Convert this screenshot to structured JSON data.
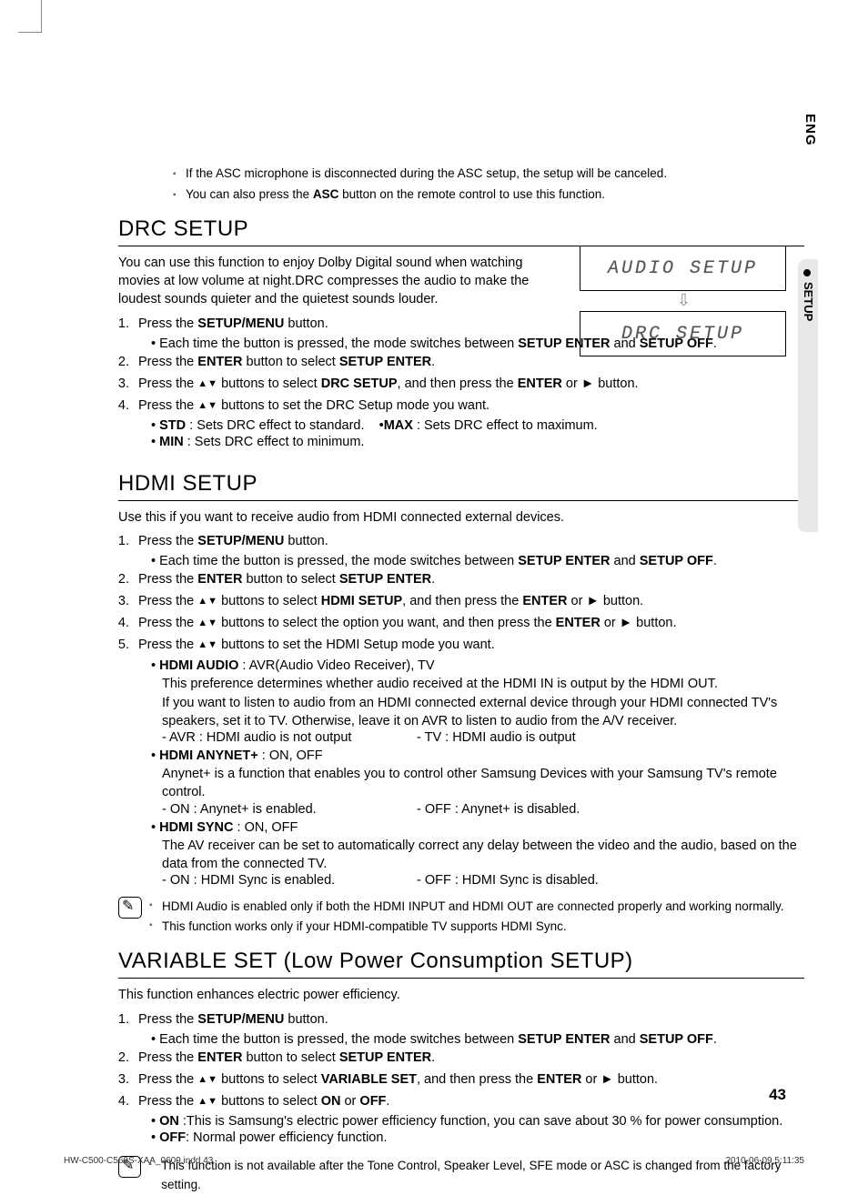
{
  "language_tab": "ENG",
  "section_tab": "SETUP",
  "top_notes": [
    "If the ASC microphone is disconnected during the ASC setup, the setup will be canceled.",
    "You can also press the <b>ASC</b> button on the remote control to use this function."
  ],
  "lcd1": "AUDIO SETUP",
  "lcd2": "DRC     SETUP",
  "drc": {
    "title": "DRC SETUP",
    "intro": "You can use this function to enjoy Dolby Digital sound when watching movies at low volume at night.DRC compresses the audio to make the loudest sounds quieter and the quietest sounds louder.",
    "step1": "Press the <b>SETUP/MENU</b> button.",
    "step1_sub": "• Each time the button is pressed, the mode switches between <b>SETUP ENTER</b> and <b>SETUP OFF</b>.",
    "step2": "Press the <b>ENTER</b> button to select <b>SETUP ENTER</b>.",
    "step3": "Press the <span class='arrow-btn'>▲▼</span> buttons to select <b>DRC SETUP</b>, and then press the <b>ENTER</b> or ► button.",
    "step4": "Press the <span class='arrow-btn'>▲▼</span> buttons to set the DRC Setup mode you want.",
    "opts": "• <b>STD</b> : Sets DRC effect to standard.&nbsp;&nbsp;&nbsp;&nbsp;•<b>MAX</b> : Sets DRC effect to maximum.",
    "opts2": "• <b>MIN</b> : Sets DRC effect to minimum."
  },
  "hdmi": {
    "title": "HDMI SETUP",
    "intro": "Use this if you want to receive audio from HDMI connected external devices.",
    "step1": "Press the <b>SETUP/MENU</b> button.",
    "step1_sub": "• Each time the button is pressed, the mode switches between <b>SETUP ENTER</b> and <b>SETUP OFF</b>.",
    "step2": "Press the <b>ENTER</b> button to select <b>SETUP ENTER</b>.",
    "step3": "Press the <span class='arrow-btn'>▲▼</span> buttons to select <b>HDMI SETUP</b>, and then press the <b>ENTER</b> or ► button.",
    "step4": "Press the <span class='arrow-btn'>▲▼</span> buttons to select the option you want, and then press the <b>ENTER</b> or ► button.",
    "step5": "Press the <span class='arrow-btn'>▲▼</span> buttons to set the HDMI Setup mode you want.",
    "audio_head": "• <b>HDMI AUDIO</b> : AVR(Audio Video Receiver), TV",
    "audio_body": "This preference determines whether audio received at the HDMI IN is output by the HDMI OUT.<br>If you want to listen to audio from an HDMI connected external device through your HDMI connected TV's speakers, set it to TV. Otherwise, leave it on AVR to listen to audio from the A/V receiver.",
    "audio_opt_l": "- AVR : HDMI audio is not output",
    "audio_opt_r": "- TV  : HDMI audio is output",
    "any_head": "• <b>HDMI ANYNET+</b> : ON, OFF",
    "any_body": "Anynet+ is a function that enables you to control other Samsung Devices with your Samsung TV's remote control.",
    "any_opt_l": "- ON : Anynet+ is enabled.",
    "any_opt_r": "- OFF : Anynet+ is disabled.",
    "sync_head": "• <b>HDMI SYNC</b> : ON, OFF",
    "sync_body": "The AV receiver can be set to automatically correct any delay between the video and the audio, based on the data from the connected TV.",
    "sync_opt_l": "- ON : HDMI Sync is enabled.",
    "sync_opt_r": "- OFF : HDMI Sync is disabled.",
    "notes": [
      "HDMI Audio is enabled only if both the HDMI INPUT and HDMI OUT are connected properly and working normally.",
      "This function works only if your HDMI-compatible TV supports HDMI Sync."
    ]
  },
  "variable": {
    "title": "VARIABLE SET (Low Power Consumption SETUP)",
    "intro": "This function enhances electric power efficiency.",
    "step1": "Press the <b>SETUP/MENU</b> button.",
    "step1_sub": "• Each time the button is pressed, the mode switches between <b>SETUP ENTER</b> and <b>SETUP OFF</b>.",
    "step2": "Press the <b>ENTER</b> button to select <b>SETUP ENTER</b>.",
    "step3": "Press the <span class='arrow-btn'>▲▼</span> buttons to select <b>VARIABLE SET</b>, and then press the <b>ENTER</b> or ► button.",
    "step4": "Press the <span class='arrow-btn'>▲▼</span> buttons to select <b>ON</b> or <b>OFF</b>.",
    "on": "• <b>ON</b> :This is Samsung's electric power efficiency function, you can save about 30 % for power consumption.",
    "off": "• <b>OFF</b>: Normal power efficiency function.",
    "note": "This function is not available after the Tone Control, Speaker Level, SFE mode or ASC is changed from the factory setting."
  },
  "page_number": "43",
  "footer_left": "HW-C500-C560S-XAA_0609.indd   43",
  "footer_right": "2010-06-09   5:11:35"
}
